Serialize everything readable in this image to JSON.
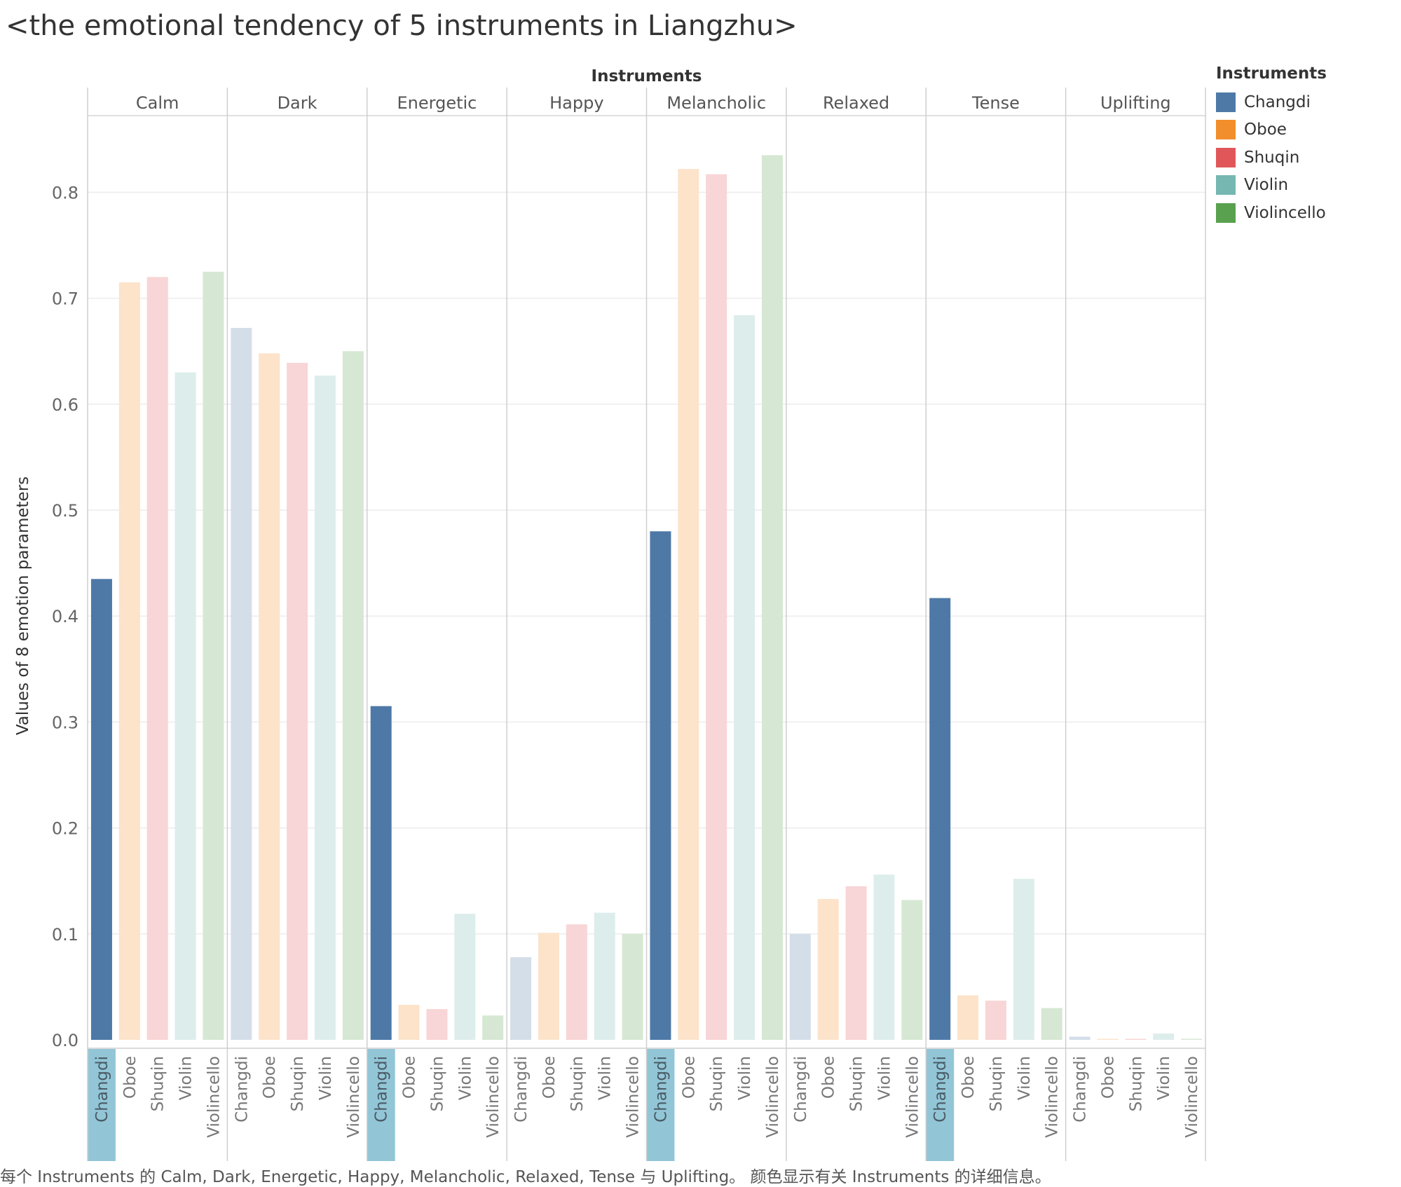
{
  "title": "<the emotional tendency of 5 instruments in Liangzhu>",
  "caption": "每个 Instruments 的 Calm, Dark, Energetic, Happy, Melancholic, Relaxed, Tense 与 Uplifting。 颜色显示有关 Instruments 的详细信息。",
  "legend": {
    "title": "Instruments",
    "items": [
      {
        "label": "Changdi",
        "color": "#4e79a7"
      },
      {
        "label": "Oboe",
        "color": "#f28e2b"
      },
      {
        "label": "Shuqin",
        "color": "#e15759"
      },
      {
        "label": "Violin",
        "color": "#76b7b2"
      },
      {
        "label": "Violincello",
        "color": "#59a14f"
      }
    ]
  },
  "chart_data": {
    "type": "bar",
    "title": "<the emotional tendency of 5 instruments in Liangzhu>",
    "column_header": "Instruments",
    "ylabel": "Values of 8 emotion parameters",
    "ylim": [
      0,
      0.88
    ],
    "yticks": [
      "0.0",
      "0.1",
      "0.2",
      "0.3",
      "0.4",
      "0.5",
      "0.6",
      "0.7",
      "0.8"
    ],
    "grid": true,
    "legend_position": "right",
    "highlighted_instrument": "Changdi",
    "instruments": [
      "Changdi",
      "Oboe",
      "Shuqin",
      "Violin",
      "Violincello"
    ],
    "colors": {
      "Changdi": "#4e79a7",
      "Oboe": "#f28e2b",
      "Shuqin": "#e15759",
      "Violin": "#76b7b2",
      "Violincello": "#59a14f"
    },
    "emotions": [
      {
        "name": "Calm",
        "values": [
          0.435,
          0.715,
          0.72,
          0.63,
          0.725
        ]
      },
      {
        "name": "Dark",
        "values": [
          0.672,
          0.648,
          0.639,
          0.627,
          0.65
        ]
      },
      {
        "name": "Energetic",
        "values": [
          0.315,
          0.033,
          0.029,
          0.119,
          0.023
        ]
      },
      {
        "name": "Happy",
        "values": [
          0.078,
          0.101,
          0.109,
          0.12,
          0.1
        ]
      },
      {
        "name": "Melancholic",
        "values": [
          0.48,
          0.822,
          0.817,
          0.684,
          0.835
        ]
      },
      {
        "name": "Relaxed",
        "values": [
          0.1,
          0.133,
          0.145,
          0.156,
          0.132
        ]
      },
      {
        "name": "Tense",
        "values": [
          0.417,
          0.042,
          0.037,
          0.152,
          0.03
        ]
      },
      {
        "name": "Uplifting",
        "values": [
          0.003,
          0.001,
          0.001,
          0.006,
          0.001
        ]
      }
    ]
  }
}
